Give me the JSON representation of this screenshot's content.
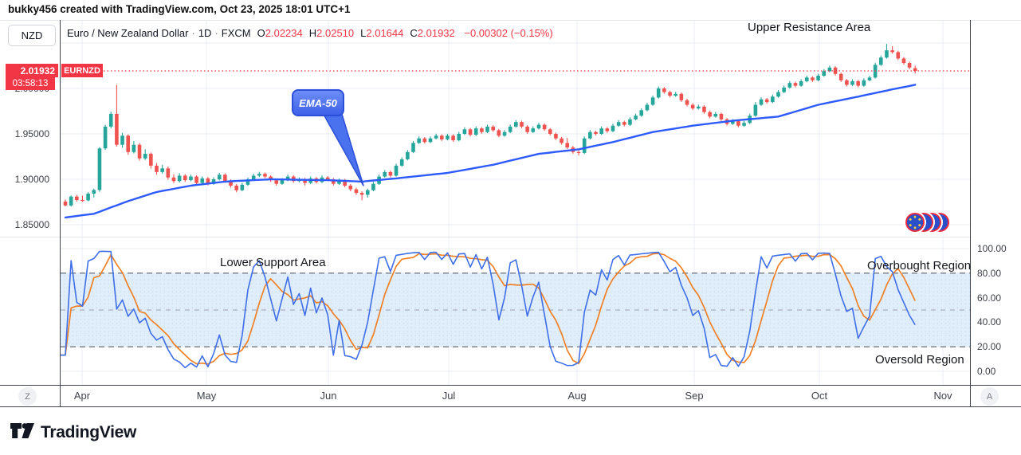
{
  "attribution": "bukky456 created with TradingView.com, Oct 23, 2025 18:01 UTC+1",
  "watermark_symbol": "NZD",
  "header": {
    "symbol": "Euro / New Zealand Dollar",
    "interval": "1D",
    "exchange": "FXCM",
    "ohlc": [
      {
        "label": "O",
        "value": "2.02234"
      },
      {
        "label": "H",
        "value": "2.02510"
      },
      {
        "label": "L",
        "value": "2.01644"
      },
      {
        "label": "C",
        "value": "2.01932"
      }
    ],
    "change": "−0.00302 (−0.15%)"
  },
  "price_tag": {
    "price": "2.01932",
    "countdown": "03:58:13",
    "symbol": "EURNZD"
  },
  "annotations": {
    "upper_resistance": "Upper Resistance Area",
    "lower_support": "Lower Support Area",
    "overbought": "Overbought Region",
    "oversold": "Oversold Region",
    "ema_callout": "EMA-50"
  },
  "price_axis_labels": [
    {
      "text": "2.00000",
      "value": 2.0
    },
    {
      "text": "1.95000",
      "value": 1.95
    },
    {
      "text": "1.90000",
      "value": 1.9
    },
    {
      "text": "1.85000",
      "value": 1.85
    }
  ],
  "indicator_axis_labels": [
    {
      "text": "100.00",
      "value": 100
    },
    {
      "text": "80.00",
      "value": 80
    },
    {
      "text": "60.00",
      "value": 60
    },
    {
      "text": "40.00",
      "value": 40
    },
    {
      "text": "20.00",
      "value": 20
    },
    {
      "text": "0.00",
      "value": 0
    }
  ],
  "time_axis": {
    "months": [
      "Apr",
      "May",
      "Jun",
      "Jul",
      "Aug",
      "Sep",
      "Oct",
      "Nov"
    ],
    "left_button": "Z",
    "right_button": "A"
  },
  "footer": {
    "brand": "TradingView"
  },
  "colors": {
    "up": "#26a69a",
    "down": "#ef5350",
    "ema": "#2e5bff",
    "stoch_k": "#3f6fe8",
    "stoch_d": "#f08127",
    "last_price_line": "#f23645",
    "band_fill": "#e0edfa",
    "band_dot": "#c3d9f2",
    "dash_outer": "#5a5f69",
    "dash_mid": "#9aa0ab",
    "grid": "#e9edf5",
    "border_dark": "#42454d",
    "border_light": "#e4e7ee"
  },
  "chart_data": {
    "type": "candlestick+oscillator",
    "symbol": "EURNZD",
    "interval": "1D",
    "price_pane": {
      "ylim": [
        1.845,
        2.075
      ],
      "grid_prices": [
        2.05,
        2.0,
        1.95,
        1.9,
        1.85
      ],
      "last_price": 2.01932,
      "candles": [
        [
          1.8755,
          1.8778,
          1.8702,
          1.8712
        ],
        [
          1.8712,
          1.8822,
          1.87,
          1.881
        ],
        [
          1.881,
          1.8828,
          1.8755,
          1.8772
        ],
        [
          1.8772,
          1.882,
          1.8752,
          1.8768
        ],
        [
          1.8768,
          1.8858,
          1.8758,
          1.8842
        ],
        [
          1.8842,
          1.8898,
          1.88,
          1.8882
        ],
        [
          1.8882,
          1.9355,
          1.8862,
          1.934
        ],
        [
          1.934,
          1.96,
          1.9325,
          1.958
        ],
        [
          1.958,
          1.9745,
          1.9562,
          1.972
        ],
        [
          1.972,
          2.004,
          1.936,
          1.938
        ],
        [
          1.938,
          1.9512,
          1.9348,
          1.948
        ],
        [
          1.948,
          1.9495,
          1.927,
          1.93
        ],
        [
          1.93,
          1.942,
          1.9285,
          1.938
        ],
        [
          1.938,
          1.94,
          1.9205,
          1.923
        ],
        [
          1.923,
          1.933,
          1.9212,
          1.928
        ],
        [
          1.928,
          1.9295,
          1.912,
          1.915
        ],
        [
          1.915,
          1.918,
          1.905,
          1.908
        ],
        [
          1.908,
          1.916,
          1.9062,
          1.912
        ],
        [
          1.912,
          1.914,
          1.8995,
          1.902
        ],
        [
          1.902,
          1.9055,
          1.8958,
          1.898
        ],
        [
          1.898,
          1.9068,
          1.8965,
          1.904
        ],
        [
          1.904,
          1.9058,
          1.8972,
          1.899
        ],
        [
          1.899,
          1.9052,
          1.8978,
          1.903
        ],
        [
          1.903,
          1.9045,
          1.894,
          1.896
        ],
        [
          1.896,
          1.9032,
          1.8948,
          1.901
        ],
        [
          1.901,
          1.9025,
          1.8932,
          1.895
        ],
        [
          1.895,
          1.9022,
          1.8938,
          1.9
        ],
        [
          1.9,
          1.9072,
          1.8988,
          1.905
        ],
        [
          1.905,
          1.9065,
          1.8962,
          1.898
        ],
        [
          1.898,
          1.8998,
          1.8908,
          1.893
        ],
        [
          1.893,
          1.8948,
          1.8858,
          1.888
        ],
        [
          1.888,
          1.8962,
          1.8868,
          1.894
        ],
        [
          1.894,
          1.902,
          1.8928,
          1.9
        ],
        [
          1.9,
          1.9062,
          1.8988,
          1.904
        ],
        [
          1.904,
          1.9082,
          1.9025,
          1.906
        ],
        [
          1.906,
          1.9075,
          1.9012,
          1.903
        ],
        [
          1.903,
          1.9045,
          1.8972,
          1.899
        ],
        [
          1.899,
          1.9008,
          1.893,
          1.895
        ],
        [
          1.895,
          1.9012,
          1.8938,
          1.899
        ],
        [
          1.899,
          1.9052,
          1.8978,
          1.903
        ],
        [
          1.903,
          1.9045,
          1.8962,
          1.898
        ],
        [
          1.898,
          1.9022,
          1.8965,
          1.9
        ],
        [
          1.9,
          1.9015,
          1.8932,
          1.896
        ],
        [
          1.896,
          1.9032,
          1.8948,
          1.901
        ],
        [
          1.901,
          1.9025,
          1.8952,
          1.897
        ],
        [
          1.897,
          1.9042,
          1.8958,
          1.902
        ],
        [
          1.902,
          1.9035,
          1.8982,
          1.9
        ],
        [
          1.9,
          1.9015,
          1.8932,
          1.895
        ],
        [
          1.895,
          1.901,
          1.8938,
          1.899
        ],
        [
          1.899,
          1.9005,
          1.8912,
          1.893
        ],
        [
          1.893,
          1.8948,
          1.8868,
          1.889
        ],
        [
          1.889,
          1.8908,
          1.8828,
          1.885
        ],
        [
          1.885,
          1.8868,
          1.877,
          1.883
        ],
        [
          1.883,
          1.8898,
          1.8798,
          1.888
        ],
        [
          1.888,
          1.8972,
          1.8868,
          1.895
        ],
        [
          1.895,
          1.9052,
          1.8938,
          1.903
        ],
        [
          1.903,
          1.9102,
          1.9018,
          1.908
        ],
        [
          1.908,
          1.9095,
          1.9022,
          1.904
        ],
        [
          1.904,
          1.9172,
          1.9028,
          1.915
        ],
        [
          1.915,
          1.9242,
          1.9138,
          1.922
        ],
        [
          1.922,
          1.9322,
          1.9208,
          1.93
        ],
        [
          1.93,
          1.9422,
          1.9288,
          1.94
        ],
        [
          1.94,
          1.9472,
          1.9388,
          1.945
        ],
        [
          1.945,
          1.9465,
          1.9392,
          1.941
        ],
        [
          1.941,
          1.9472,
          1.9398,
          1.945
        ],
        [
          1.945,
          1.9502,
          1.9438,
          1.948
        ],
        [
          1.948,
          1.9495,
          1.9422,
          1.944
        ],
        [
          1.944,
          1.9502,
          1.9428,
          1.948
        ],
        [
          1.948,
          1.9495,
          1.9412,
          1.943
        ],
        [
          1.943,
          1.9522,
          1.9418,
          1.95
        ],
        [
          1.95,
          1.9572,
          1.9488,
          1.955
        ],
        [
          1.955,
          1.9565,
          1.9472,
          1.949
        ],
        [
          1.949,
          1.9582,
          1.9478,
          1.956
        ],
        [
          1.956,
          1.9575,
          1.9502,
          1.952
        ],
        [
          1.952,
          1.9602,
          1.9508,
          1.958
        ],
        [
          1.958,
          1.9595,
          1.9522,
          1.954
        ],
        [
          1.954,
          1.9555,
          1.9462,
          1.948
        ],
        [
          1.948,
          1.9542,
          1.9468,
          1.952
        ],
        [
          1.952,
          1.9602,
          1.9508,
          1.958
        ],
        [
          1.958,
          1.9652,
          1.9568,
          1.963
        ],
        [
          1.963,
          1.9645,
          1.9562,
          1.958
        ],
        [
          1.958,
          1.9595,
          1.9502,
          1.952
        ],
        [
          1.952,
          1.9582,
          1.9508,
          1.956
        ],
        [
          1.956,
          1.9622,
          1.9548,
          1.96
        ],
        [
          1.96,
          1.9615,
          1.9532,
          1.955
        ],
        [
          1.955,
          1.9565,
          1.9482,
          1.95
        ],
        [
          1.95,
          1.9515,
          1.9432,
          1.945
        ],
        [
          1.945,
          1.9465,
          1.9382,
          1.94
        ],
        [
          1.94,
          1.9455,
          1.9335,
          1.935
        ],
        [
          1.935,
          1.9368,
          1.9282,
          1.93
        ],
        [
          1.93,
          1.9318,
          1.9262,
          1.929
        ],
        [
          1.929,
          1.9472,
          1.9278,
          1.945
        ],
        [
          1.945,
          1.9542,
          1.9438,
          1.952
        ],
        [
          1.952,
          1.9535,
          1.9482,
          1.95
        ],
        [
          1.95,
          1.9582,
          1.9488,
          1.956
        ],
        [
          1.956,
          1.9575,
          1.9512,
          1.953
        ],
        [
          1.953,
          1.9612,
          1.9518,
          1.959
        ],
        [
          1.959,
          1.9652,
          1.9578,
          1.963
        ],
        [
          1.963,
          1.9645,
          1.9582,
          1.96
        ],
        [
          1.96,
          1.9682,
          1.9588,
          1.966
        ],
        [
          1.966,
          1.9722,
          1.9648,
          1.97
        ],
        [
          1.97,
          1.9782,
          1.9688,
          1.976
        ],
        [
          1.976,
          1.9842,
          1.9748,
          1.982
        ],
        [
          1.982,
          1.9922,
          1.9808,
          1.99
        ],
        [
          1.99,
          2.0022,
          1.9888,
          2.0
        ],
        [
          2.0,
          2.0015,
          1.9942,
          1.996
        ],
        [
          1.996,
          1.9975,
          1.9902,
          1.992
        ],
        [
          1.992,
          1.9962,
          1.9908,
          1.994
        ],
        [
          1.994,
          1.9955,
          1.9852,
          1.987
        ],
        [
          1.987,
          1.9888,
          1.9802,
          1.982
        ],
        [
          1.982,
          1.9838,
          1.9762,
          1.978
        ],
        [
          1.978,
          1.9822,
          1.9768,
          1.98
        ],
        [
          1.98,
          1.9815,
          1.9722,
          1.974
        ],
        [
          1.974,
          1.9755,
          1.9672,
          1.969
        ],
        [
          1.969,
          1.9742,
          1.9678,
          1.972
        ],
        [
          1.972,
          1.9735,
          1.9642,
          1.966
        ],
        [
          1.966,
          1.9675,
          1.9592,
          1.961
        ],
        [
          1.961,
          1.9662,
          1.9598,
          1.964
        ],
        [
          1.964,
          1.9655,
          1.9572,
          1.959
        ],
        [
          1.959,
          1.9642,
          1.9578,
          1.962
        ],
        [
          1.962,
          1.9722,
          1.9608,
          1.97
        ],
        [
          1.97,
          1.985,
          1.9688,
          1.982
        ],
        [
          1.982,
          1.9902,
          1.9808,
          1.988
        ],
        [
          1.988,
          1.9895,
          1.9832,
          1.985
        ],
        [
          1.985,
          1.9932,
          1.9838,
          1.991
        ],
        [
          1.991,
          1.9982,
          1.9898,
          1.996
        ],
        [
          1.996,
          2.0032,
          1.9948,
          2.001
        ],
        [
          2.001,
          2.0082,
          1.9998,
          2.006
        ],
        [
          2.006,
          2.0075,
          2.0012,
          2.003
        ],
        [
          2.003,
          2.0102,
          2.0018,
          2.008
        ],
        [
          2.008,
          2.0142,
          2.0068,
          2.012
        ],
        [
          2.012,
          2.0135,
          2.0072,
          2.009
        ],
        [
          2.009,
          2.0162,
          2.0078,
          2.014
        ],
        [
          2.014,
          2.0212,
          2.0128,
          2.019
        ],
        [
          2.019,
          2.0252,
          2.0178,
          2.023
        ],
        [
          2.023,
          2.0245,
          2.0142,
          2.016
        ],
        [
          2.016,
          2.0175,
          2.0072,
          2.009
        ],
        [
          2.009,
          2.0105,
          2.0022,
          2.004
        ],
        [
          2.004,
          2.0102,
          2.0028,
          2.008
        ],
        [
          2.008,
          2.0095,
          2.0012,
          2.003
        ],
        [
          2.003,
          2.0112,
          2.0018,
          2.009
        ],
        [
          2.009,
          2.0142,
          2.0078,
          2.012
        ],
        [
          2.012,
          2.0282,
          2.0108,
          2.026
        ],
        [
          2.026,
          2.0362,
          2.0248,
          2.034
        ],
        [
          2.034,
          2.049,
          2.0328,
          2.042
        ],
        [
          2.042,
          2.0465,
          2.0382,
          2.04
        ],
        [
          2.04,
          2.0415,
          2.0312,
          2.033
        ],
        [
          2.033,
          2.0345,
          2.0262,
          2.028
        ],
        [
          2.028,
          2.0295,
          2.0212,
          2.023
        ],
        [
          2.02234,
          2.0251,
          2.01644,
          2.01932
        ]
      ],
      "ema50_anchors": [
        [
          0,
          1.858
        ],
        [
          5,
          1.862
        ],
        [
          11,
          1.876
        ],
        [
          16,
          1.886
        ],
        [
          22,
          1.893
        ],
        [
          28,
          1.8975
        ],
        [
          36,
          1.9
        ],
        [
          46,
          1.899
        ],
        [
          52,
          1.8975
        ],
        [
          58,
          1.901
        ],
        [
          67,
          1.907
        ],
        [
          75,
          1.916
        ],
        [
          83,
          1.928
        ],
        [
          90,
          1.933
        ],
        [
          96,
          1.941
        ],
        [
          103,
          1.952
        ],
        [
          110,
          1.959
        ],
        [
          117,
          1.9645
        ],
        [
          125,
          1.969
        ],
        [
          132,
          1.982
        ],
        [
          139,
          1.991
        ],
        [
          145,
          1.999
        ],
        [
          149,
          2.004
        ]
      ]
    },
    "indicator_pane": {
      "name": "stochastic",
      "k_period": 14,
      "d_smoothing": 5,
      "bands": {
        "upper": 80,
        "middle": 50,
        "lower": 20
      },
      "ylim": [
        0,
        100
      ],
      "grid_values": [
        100,
        80,
        60,
        40,
        20,
        0
      ]
    }
  }
}
